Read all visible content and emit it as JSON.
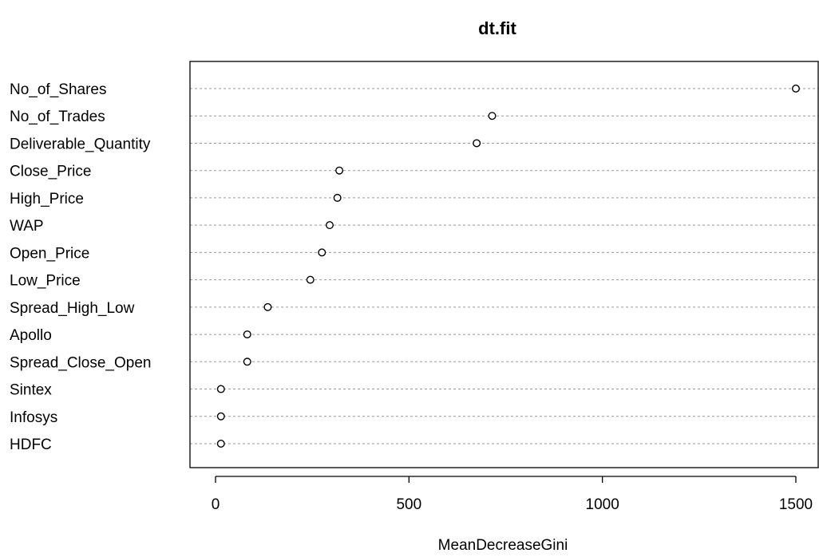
{
  "chart_data": {
    "type": "scatter",
    "title": "dt.fit",
    "xlabel": "MeanDecreaseGini",
    "ylabel": "",
    "xlim": [
      -10,
      1510
    ],
    "xticks": [
      0,
      500,
      1000,
      1500
    ],
    "grid": "horizontal dotted guide per category",
    "categories": [
      "No_of_Shares",
      "No_of_Trades",
      "Deliverable_Quantity",
      "Close_Price",
      "High_Price",
      "WAP",
      "Open_Price",
      "Low_Price",
      "Spread_High_Low",
      "Apollo",
      "Spread_Close_Open",
      "Sintex",
      "Infosys",
      "HDFC"
    ],
    "values": [
      1500,
      715,
      675,
      320,
      315,
      295,
      275,
      245,
      135,
      82,
      82,
      14,
      14,
      14
    ]
  }
}
